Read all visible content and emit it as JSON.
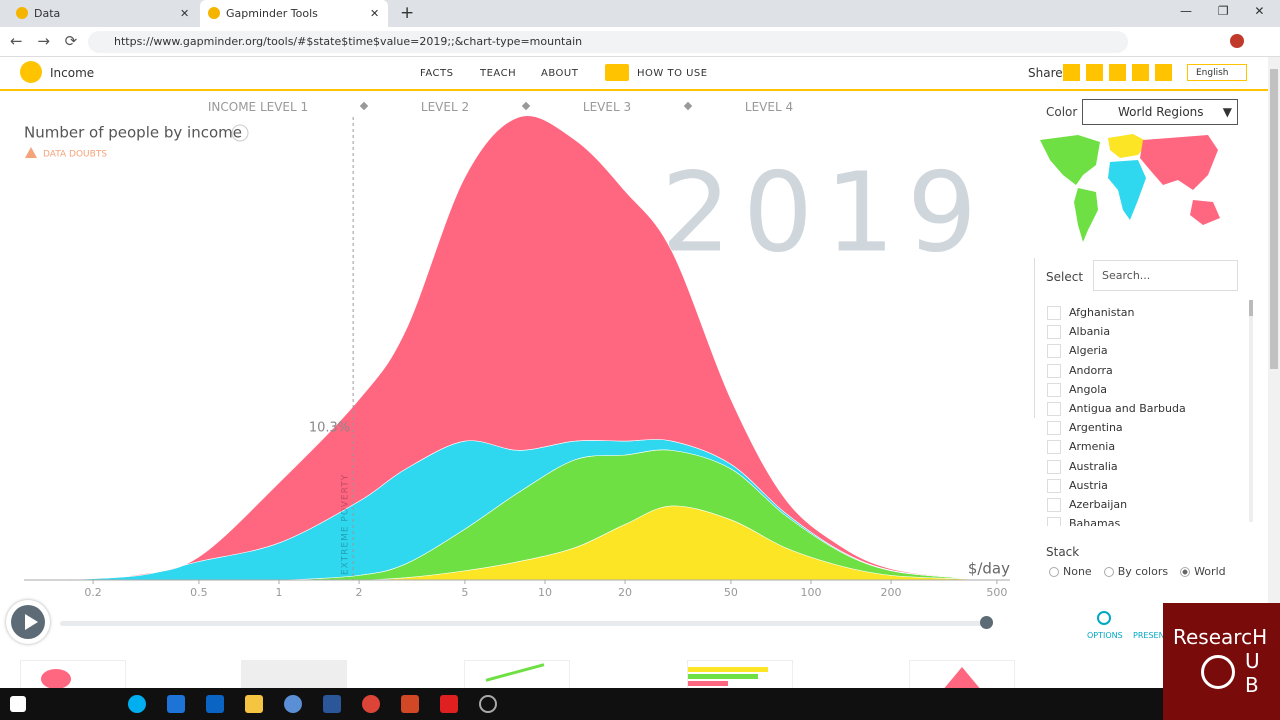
{
  "browser": {
    "tabs": [
      "Data",
      "Gapminder Tools"
    ],
    "url": "https://www.gapminder.org/tools/#$state$time$value=2019;;&chart-type=mountain"
  },
  "header": {
    "title": "Income",
    "nav": [
      "FACTS",
      "TEACH",
      "ABOUT",
      "HOW TO USE"
    ],
    "share": "Share",
    "language": "English"
  },
  "chart_data": {
    "type": "mountain",
    "title": "Number of people by income",
    "warning": "DATA DOUBTS",
    "levels": [
      "INCOME LEVEL 1",
      "LEVEL 2",
      "LEVEL 3",
      "LEVEL 4"
    ],
    "year": "2019",
    "x_label": "$/day",
    "poverty_label": "EXTREME POVERTY",
    "poverty_share": "10.3%",
    "poverty_line": 1.9,
    "x": [
      0.15,
      0.3,
      0.5,
      1,
      2,
      3,
      5,
      8,
      13,
      20,
      30,
      50,
      80,
      130,
      200,
      350,
      500
    ],
    "series": [
      {
        "color": "#fbe524",
        "values": [
          0,
          0,
          0,
          0,
          0,
          0.5,
          2,
          4,
          7,
          12,
          16,
          13,
          7,
          3,
          1,
          0.3,
          0
        ]
      },
      {
        "color": "#6ee043",
        "values": [
          0,
          0,
          0,
          0,
          1,
          3,
          9,
          15,
          19,
          15,
          12,
          11,
          7,
          3,
          1,
          0.2,
          0
        ]
      },
      {
        "color": "#2fd7ef",
        "values": [
          0,
          1,
          4,
          8,
          16,
          20.5,
          19,
          9,
          4,
          3,
          2,
          1,
          0.5,
          0.2,
          0.1,
          0,
          0
        ]
      },
      {
        "color": "#ff6680",
        "values": [
          0,
          0.2,
          1,
          13,
          22,
          30,
          57,
          72,
          65,
          54,
          41,
          14,
          3,
          1,
          0.3,
          0.1,
          0
        ]
      }
    ],
    "log_x": true,
    "xlim": [
      0.11,
      560
    ],
    "xticks": [
      0.2,
      0.5,
      1,
      2,
      5,
      10,
      20,
      50,
      100,
      200,
      500
    ],
    "ylim": [
      0,
      100
    ]
  },
  "sidebar": {
    "color_label": "Color",
    "color_value": "World Regions",
    "select_label": "Select",
    "search_placeholder": "Search...",
    "countries": [
      "Afghanistan",
      "Albania",
      "Algeria",
      "Andorra",
      "Angola",
      "Antigua and Barbuda",
      "Argentina",
      "Armenia",
      "Australia",
      "Austria",
      "Azerbaijan",
      "Bahamas"
    ],
    "stack_label": "Stack",
    "stack_options": [
      "None",
      "By colors",
      "World"
    ],
    "stack_selected": 2
  },
  "footer": {
    "options": "OPTIONS",
    "present": "PRESENT"
  },
  "watermark": {
    "line1": "ResearcH",
    "line2": "U",
    "line3": "B"
  }
}
